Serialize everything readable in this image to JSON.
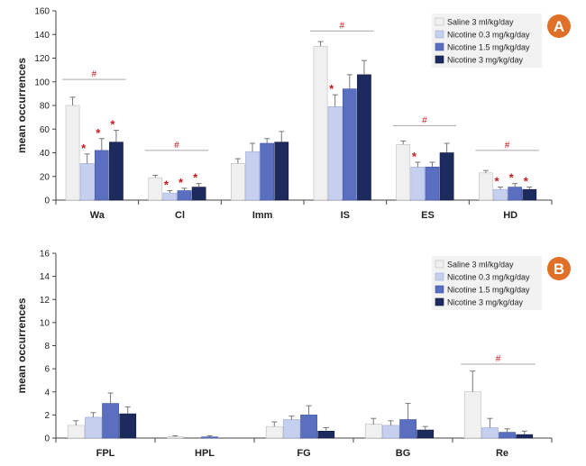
{
  "colors": {
    "saline": "#f0f0f0",
    "nicotine_low": "#c5d0ee",
    "nicotine_mid": "#5a6fc0",
    "nicotine_high": "#1d2a5e",
    "annotation": "#d0161b",
    "badge": "#e07028"
  },
  "legend": [
    {
      "label": "Saline   3 ml/kg/day"
    },
    {
      "label": "Nicotine  0.3 mg/kg/day"
    },
    {
      "label": "Nicotine  1.5 mg/kg/day"
    },
    {
      "label": "Nicotine  3 mg/kg/day"
    }
  ],
  "chart_data": [
    {
      "panel": "A",
      "type": "bar",
      "ylabel": "mean occurrences",
      "ylim": [
        0,
        160
      ],
      "yticks": [
        0,
        20,
        40,
        60,
        80,
        100,
        120,
        140,
        160
      ],
      "legend_position": "top-right",
      "categories": [
        "Wa",
        "Cl",
        "Imm",
        "IS",
        "ES",
        "HD"
      ],
      "series": [
        {
          "name": "Saline   3 ml/kg/day",
          "values": [
            80,
            19,
            31,
            130,
            47,
            23
          ],
          "errors": [
            7,
            2,
            4,
            4,
            3,
            2
          ]
        },
        {
          "name": "Nicotine  0.3 mg/kg/day",
          "values": [
            31,
            6,
            41,
            79,
            28,
            9
          ],
          "errors": [
            8,
            2,
            7,
            10,
            4,
            2
          ]
        },
        {
          "name": "Nicotine  1.5 mg/kg/day",
          "values": [
            42,
            8,
            48,
            94,
            28,
            11
          ],
          "errors": [
            10,
            2,
            4,
            12,
            4,
            3
          ]
        },
        {
          "name": "Nicotine  3 mg/kg/day",
          "values": [
            49,
            11,
            49,
            106,
            40,
            9
          ],
          "errors": [
            10,
            3,
            9,
            12,
            8,
            2
          ]
        }
      ],
      "stars": [
        [],
        [
          1,
          2,
          3
        ],
        [],
        [
          1
        ],
        [
          1
        ],
        [
          1,
          2,
          3
        ]
      ],
      "stars_wa": [
        1,
        2,
        3
      ],
      "hash": [
        {
          "category": 0,
          "y": 102,
          "label": "#"
        },
        {
          "category": 1,
          "y": 42,
          "label": "#"
        },
        {
          "category": 3,
          "y": 143,
          "label": "#"
        },
        {
          "category": 4,
          "y": 63,
          "label": "#"
        },
        {
          "category": 5,
          "y": 42,
          "label": "#"
        }
      ],
      "badge": "A"
    },
    {
      "panel": "B",
      "type": "bar",
      "ylabel": "mean occurrences",
      "ylim": [
        0,
        16
      ],
      "yticks": [
        0,
        2,
        4,
        6,
        8,
        10,
        12,
        14,
        16
      ],
      "legend_position": "top-right",
      "categories": [
        "FPL",
        "HPL",
        "FG",
        "BG",
        "Re"
      ],
      "series": [
        {
          "name": "Saline   3 ml/kg/day",
          "values": [
            1.1,
            0.1,
            1.0,
            1.2,
            4.0
          ],
          "errors": [
            0.4,
            0.1,
            0.4,
            0.5,
            1.8
          ]
        },
        {
          "name": "Nicotine  0.3 mg/kg/day",
          "values": [
            1.8,
            0.0,
            1.6,
            1.1,
            0.9
          ],
          "errors": [
            0.4,
            0.0,
            0.3,
            0.4,
            0.8
          ]
        },
        {
          "name": "Nicotine  1.5 mg/kg/day",
          "values": [
            3.0,
            0.1,
            2.0,
            1.6,
            0.5
          ],
          "errors": [
            0.9,
            0.1,
            0.8,
            1.4,
            0.3
          ]
        },
        {
          "name": "Nicotine  3 mg/kg/day",
          "values": [
            2.1,
            0.0,
            0.6,
            0.7,
            0.3
          ],
          "errors": [
            0.6,
            0.0,
            0.3,
            0.3,
            0.3
          ]
        }
      ],
      "stars": [
        [],
        [],
        [],
        [],
        []
      ],
      "hash": [
        {
          "category": 4,
          "y": 6.4,
          "label": "#"
        }
      ],
      "badge": "B"
    }
  ]
}
